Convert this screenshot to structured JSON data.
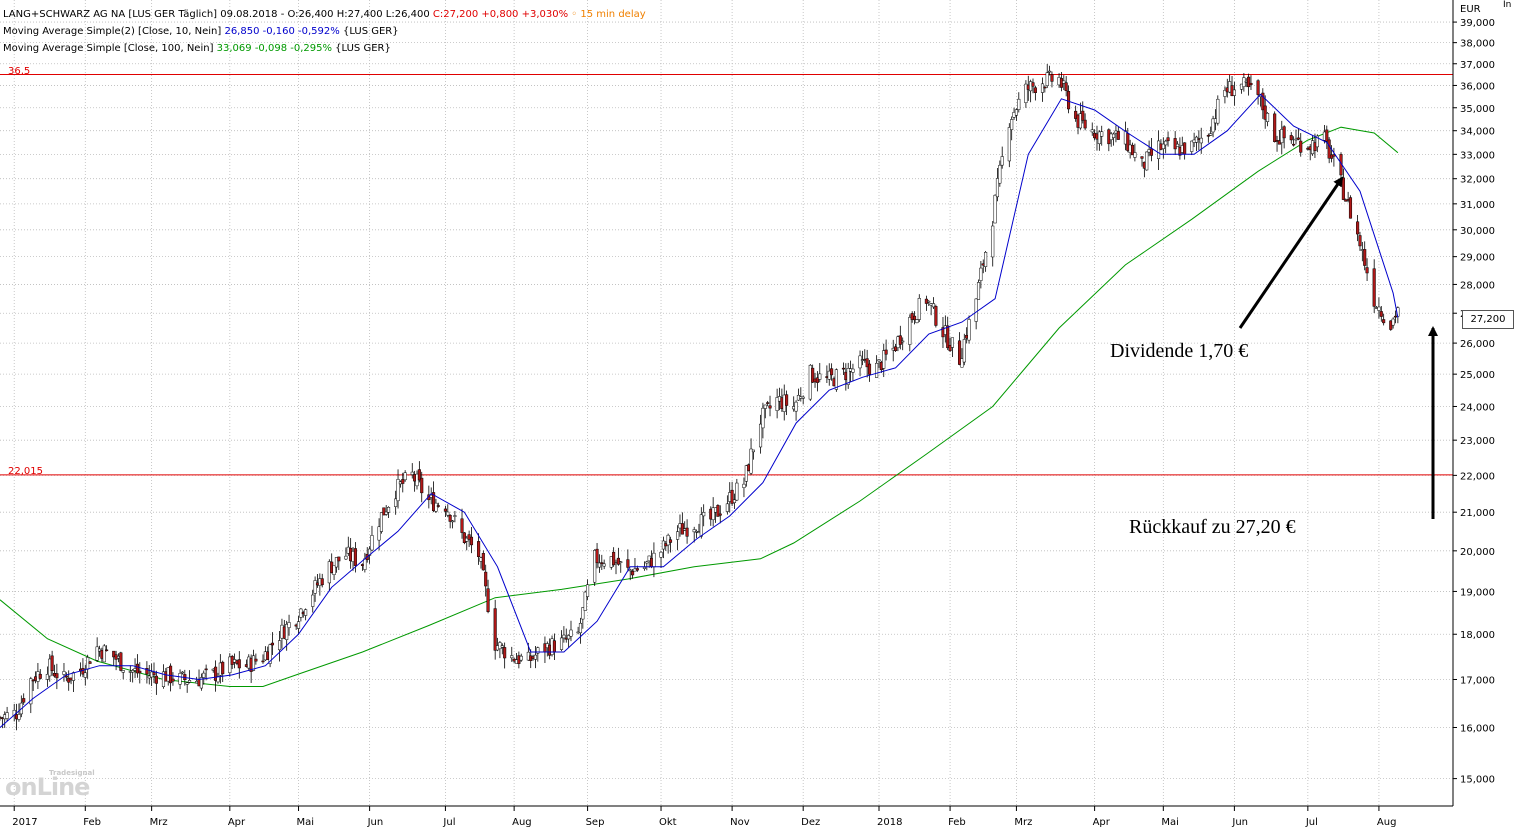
{
  "header": {
    "line1": {
      "symbol": "LANG+SCHWARZ AG NA [LUS GER Täglich] 09.08.2018 - O:26,400 H:27,400 L:26,400 ",
      "close": "C:27,200 +0,800 +3,030%",
      "delay": "15 min delay"
    },
    "line2": {
      "label": "Moving Average Simple(2) [Close, 10, Nein] ",
      "values": "26,850 -0,160 -0,592%",
      "suffix": " {LUS GER}"
    },
    "line3": {
      "label": "Moving Average Simple [Close, 100, Nein] ",
      "values": "33,069 -0,098 -0,295%",
      "suffix": " {LUS GER}"
    }
  },
  "currency": "EUR",
  "corner_label": "In",
  "last_price_box": "27,200",
  "logo": {
    "main": "onLine",
    "small": "Tradesignal"
  },
  "colors": {
    "candle_up": "#ffffff",
    "candle_down": "#b01818",
    "wick": "#000000",
    "ma10": "#0000cc",
    "ma100": "#009900",
    "hline": "#e00000",
    "grid": "#bbbbbb"
  },
  "annotations": {
    "dividend": "Dividende 1,70 €",
    "buyback": "Rückkauf zu 27,20 €"
  },
  "chart_data": {
    "type": "candlestick",
    "ylim": [
      14.6,
      39.8
    ],
    "y_scale": "log",
    "grid": true,
    "y_ticks": [
      "15,000",
      "16,000",
      "17,000",
      "18,000",
      "19,000",
      "20,000",
      "21,000",
      "22,000",
      "23,000",
      "24,000",
      "25,000",
      "26,000",
      "27,000",
      "28,000",
      "29,000",
      "30,000",
      "31,000",
      "32,000",
      "33,000",
      "34,000",
      "35,000",
      "36,000",
      "37,000",
      "38,000",
      "39,000"
    ],
    "y_tick_values": [
      15,
      16,
      17,
      18,
      19,
      20,
      21,
      22,
      23,
      24,
      25,
      26,
      27,
      28,
      29,
      30,
      31,
      32,
      33,
      34,
      35,
      36,
      37,
      38,
      39
    ],
    "x_ticks": [
      {
        "label": "2017",
        "date": "2017-01-02"
      },
      {
        "label": "Feb",
        "date": "2017-02-01"
      },
      {
        "label": "Mrz",
        "date": "2017-03-01"
      },
      {
        "label": "Apr",
        "date": "2017-04-03"
      },
      {
        "label": "Mai",
        "date": "2017-05-02"
      },
      {
        "label": "Jun",
        "date": "2017-06-01"
      },
      {
        "label": "Jul",
        "date": "2017-07-03"
      },
      {
        "label": "Aug",
        "date": "2017-08-01"
      },
      {
        "label": "Sep",
        "date": "2017-09-01"
      },
      {
        "label": "Okt",
        "date": "2017-10-02"
      },
      {
        "label": "Nov",
        "date": "2017-11-01"
      },
      {
        "label": "Dez",
        "date": "2017-12-01"
      },
      {
        "label": "2018",
        "date": "2018-01-02"
      },
      {
        "label": "Feb",
        "date": "2018-02-01"
      },
      {
        "label": "Mrz",
        "date": "2018-03-01"
      },
      {
        "label": "Apr",
        "date": "2018-04-03"
      },
      {
        "label": "Mai",
        "date": "2018-05-02"
      },
      {
        "label": "Jun",
        "date": "2018-06-01"
      },
      {
        "label": "Jul",
        "date": "2018-07-02"
      },
      {
        "label": "Aug",
        "date": "2018-08-01"
      }
    ],
    "x_range": [
      "2016-12-27",
      "2018-08-31"
    ],
    "hlines": [
      {
        "value": 36.5,
        "label": "36,5"
      },
      {
        "value": 22.015,
        "label": "22,015"
      }
    ],
    "price_path": [
      {
        "date": "2016-12-27",
        "close": 16.2
      },
      {
        "date": "2017-01-03",
        "close": 16.3
      },
      {
        "date": "2017-01-09",
        "close": 17.0
      },
      {
        "date": "2017-01-16",
        "close": 17.3
      },
      {
        "date": "2017-01-23",
        "close": 17.0
      },
      {
        "date": "2017-01-30",
        "close": 17.2
      },
      {
        "date": "2017-02-06",
        "close": 17.7
      },
      {
        "date": "2017-02-13",
        "close": 17.5
      },
      {
        "date": "2017-02-20",
        "close": 17.2
      },
      {
        "date": "2017-02-27",
        "close": 17.1
      },
      {
        "date": "2017-03-06",
        "close": 17.1
      },
      {
        "date": "2017-03-13",
        "close": 17.0
      },
      {
        "date": "2017-03-20",
        "close": 17.0
      },
      {
        "date": "2017-03-27",
        "close": 17.1
      },
      {
        "date": "2017-04-03",
        "close": 17.3
      },
      {
        "date": "2017-04-10",
        "close": 17.3
      },
      {
        "date": "2017-04-17",
        "close": 17.5
      },
      {
        "date": "2017-04-24",
        "close": 18.0
      },
      {
        "date": "2017-05-01",
        "close": 18.4
      },
      {
        "date": "2017-05-08",
        "close": 19.0
      },
      {
        "date": "2017-05-15",
        "close": 19.6
      },
      {
        "date": "2017-05-22",
        "close": 19.9
      },
      {
        "date": "2017-05-29",
        "close": 19.7
      },
      {
        "date": "2017-06-05",
        "close": 20.8
      },
      {
        "date": "2017-06-12",
        "close": 21.6
      },
      {
        "date": "2017-06-19",
        "close": 22.0
      },
      {
        "date": "2017-06-26",
        "close": 21.3
      },
      {
        "date": "2017-07-03",
        "close": 21.2
      },
      {
        "date": "2017-07-10",
        "close": 20.4
      },
      {
        "date": "2017-07-17",
        "close": 19.9
      },
      {
        "date": "2017-07-24",
        "close": 17.8
      },
      {
        "date": "2017-07-31",
        "close": 17.5
      },
      {
        "date": "2017-08-07",
        "close": 17.4
      },
      {
        "date": "2017-08-14",
        "close": 17.7
      },
      {
        "date": "2017-08-21",
        "close": 17.8
      },
      {
        "date": "2017-08-28",
        "close": 18.0
      },
      {
        "date": "2017-09-04",
        "close": 19.8
      },
      {
        "date": "2017-09-11",
        "close": 19.8
      },
      {
        "date": "2017-09-18",
        "close": 19.5
      },
      {
        "date": "2017-09-25",
        "close": 19.6
      },
      {
        "date": "2017-10-02",
        "close": 20.0
      },
      {
        "date": "2017-10-09",
        "close": 20.5
      },
      {
        "date": "2017-10-16",
        "close": 20.7
      },
      {
        "date": "2017-10-23",
        "close": 20.8
      },
      {
        "date": "2017-10-30",
        "close": 21.3
      },
      {
        "date": "2017-11-06",
        "close": 21.8
      },
      {
        "date": "2017-11-13",
        "close": 23.6
      },
      {
        "date": "2017-11-20",
        "close": 24.2
      },
      {
        "date": "2017-11-27",
        "close": 24.0
      },
      {
        "date": "2017-12-04",
        "close": 25.0
      },
      {
        "date": "2017-12-11",
        "close": 24.8
      },
      {
        "date": "2017-12-18",
        "close": 25.0
      },
      {
        "date": "2017-12-25",
        "close": 25.3
      },
      {
        "date": "2018-01-01",
        "close": 25.2
      },
      {
        "date": "2018-01-08",
        "close": 25.8
      },
      {
        "date": "2018-01-15",
        "close": 26.8
      },
      {
        "date": "2018-01-22",
        "close": 27.5
      },
      {
        "date": "2018-01-29",
        "close": 26.4
      },
      {
        "date": "2018-02-05",
        "close": 25.5
      },
      {
        "date": "2018-02-12",
        "close": 27.5
      },
      {
        "date": "2018-02-19",
        "close": 30.5
      },
      {
        "date": "2018-02-26",
        "close": 34.5
      },
      {
        "date": "2018-03-05",
        "close": 35.8
      },
      {
        "date": "2018-03-12",
        "close": 36.2
      },
      {
        "date": "2018-03-19",
        "close": 36.3
      },
      {
        "date": "2018-03-26",
        "close": 34.5
      },
      {
        "date": "2018-04-02",
        "close": 34.0
      },
      {
        "date": "2018-04-09",
        "close": 33.8
      },
      {
        "date": "2018-04-16",
        "close": 33.6
      },
      {
        "date": "2018-04-23",
        "close": 32.5
      },
      {
        "date": "2018-04-30",
        "close": 33.3
      },
      {
        "date": "2018-05-07",
        "close": 33.2
      },
      {
        "date": "2018-05-14",
        "close": 33.3
      },
      {
        "date": "2018-05-21",
        "close": 34.0
      },
      {
        "date": "2018-05-28",
        "close": 35.8
      },
      {
        "date": "2018-06-04",
        "close": 36.0
      },
      {
        "date": "2018-06-11",
        "close": 35.5
      },
      {
        "date": "2018-06-18",
        "close": 33.8
      },
      {
        "date": "2018-06-25",
        "close": 33.6
      },
      {
        "date": "2018-07-02",
        "close": 33.4
      },
      {
        "date": "2018-07-09",
        "close": 33.6
      },
      {
        "date": "2018-07-16",
        "close": 31.8
      },
      {
        "date": "2018-07-23",
        "close": 29.8
      },
      {
        "date": "2018-07-30",
        "close": 27.5
      },
      {
        "date": "2018-08-06",
        "close": 26.6
      },
      {
        "date": "2018-08-09",
        "close": 27.2
      }
    ],
    "ma10_path": [
      {
        "date": "2016-12-27",
        "value": 16.0
      },
      {
        "date": "2017-01-10",
        "value": 16.6
      },
      {
        "date": "2017-01-24",
        "value": 17.1
      },
      {
        "date": "2017-02-07",
        "value": 17.3
      },
      {
        "date": "2017-02-21",
        "value": 17.3
      },
      {
        "date": "2017-03-07",
        "value": 17.1
      },
      {
        "date": "2017-03-21",
        "value": 17.0
      },
      {
        "date": "2017-04-04",
        "value": 17.1
      },
      {
        "date": "2017-04-18",
        "value": 17.3
      },
      {
        "date": "2017-05-02",
        "value": 18.0
      },
      {
        "date": "2017-05-16",
        "value": 19.1
      },
      {
        "date": "2017-05-30",
        "value": 19.8
      },
      {
        "date": "2017-06-13",
        "value": 20.5
      },
      {
        "date": "2017-06-27",
        "value": 21.5
      },
      {
        "date": "2017-07-11",
        "value": 21.0
      },
      {
        "date": "2017-07-25",
        "value": 19.6
      },
      {
        "date": "2017-08-08",
        "value": 17.6
      },
      {
        "date": "2017-08-22",
        "value": 17.6
      },
      {
        "date": "2017-09-05",
        "value": 18.3
      },
      {
        "date": "2017-09-19",
        "value": 19.6
      },
      {
        "date": "2017-10-03",
        "value": 19.6
      },
      {
        "date": "2017-10-17",
        "value": 20.3
      },
      {
        "date": "2017-10-31",
        "value": 20.9
      },
      {
        "date": "2017-11-14",
        "value": 21.8
      },
      {
        "date": "2017-11-28",
        "value": 23.5
      },
      {
        "date": "2017-12-12",
        "value": 24.5
      },
      {
        "date": "2017-12-26",
        "value": 24.9
      },
      {
        "date": "2018-01-09",
        "value": 25.2
      },
      {
        "date": "2018-01-23",
        "value": 26.3
      },
      {
        "date": "2018-02-06",
        "value": 26.7
      },
      {
        "date": "2018-02-20",
        "value": 27.5
      },
      {
        "date": "2018-03-06",
        "value": 33.0
      },
      {
        "date": "2018-03-20",
        "value": 35.4
      },
      {
        "date": "2018-04-03",
        "value": 34.9
      },
      {
        "date": "2018-04-17",
        "value": 33.9
      },
      {
        "date": "2018-05-01",
        "value": 33.0
      },
      {
        "date": "2018-05-15",
        "value": 33.0
      },
      {
        "date": "2018-05-29",
        "value": 34.0
      },
      {
        "date": "2018-06-12",
        "value": 35.6
      },
      {
        "date": "2018-06-26",
        "value": 34.2
      },
      {
        "date": "2018-07-10",
        "value": 33.5
      },
      {
        "date": "2018-07-24",
        "value": 31.5
      },
      {
        "date": "2018-08-07",
        "value": 27.7
      },
      {
        "date": "2018-08-09",
        "value": 26.85
      }
    ],
    "ma100_path": [
      {
        "date": "2016-12-27",
        "value": 18.8
      },
      {
        "date": "2017-01-16",
        "value": 17.9
      },
      {
        "date": "2017-02-06",
        "value": 17.4
      },
      {
        "date": "2017-03-06",
        "value": 17.0
      },
      {
        "date": "2017-04-03",
        "value": 16.85
      },
      {
        "date": "2017-04-17",
        "value": 16.85
      },
      {
        "date": "2017-05-01",
        "value": 17.1
      },
      {
        "date": "2017-05-29",
        "value": 17.6
      },
      {
        "date": "2017-06-26",
        "value": 18.2
      },
      {
        "date": "2017-07-24",
        "value": 18.85
      },
      {
        "date": "2017-08-21",
        "value": 19.05
      },
      {
        "date": "2017-09-18",
        "value": 19.3
      },
      {
        "date": "2017-10-16",
        "value": 19.6
      },
      {
        "date": "2017-11-13",
        "value": 19.8
      },
      {
        "date": "2017-11-27",
        "value": 20.2
      },
      {
        "date": "2017-12-25",
        "value": 21.3
      },
      {
        "date": "2018-01-22",
        "value": 22.6
      },
      {
        "date": "2018-02-19",
        "value": 24.0
      },
      {
        "date": "2018-03-19",
        "value": 26.5
      },
      {
        "date": "2018-04-16",
        "value": 28.7
      },
      {
        "date": "2018-05-14",
        "value": 30.4
      },
      {
        "date": "2018-06-11",
        "value": 32.3
      },
      {
        "date": "2018-07-02",
        "value": 33.6
      },
      {
        "date": "2018-07-16",
        "value": 34.15
      },
      {
        "date": "2018-07-30",
        "value": 33.9
      },
      {
        "date": "2018-08-09",
        "value": 33.07
      }
    ]
  }
}
